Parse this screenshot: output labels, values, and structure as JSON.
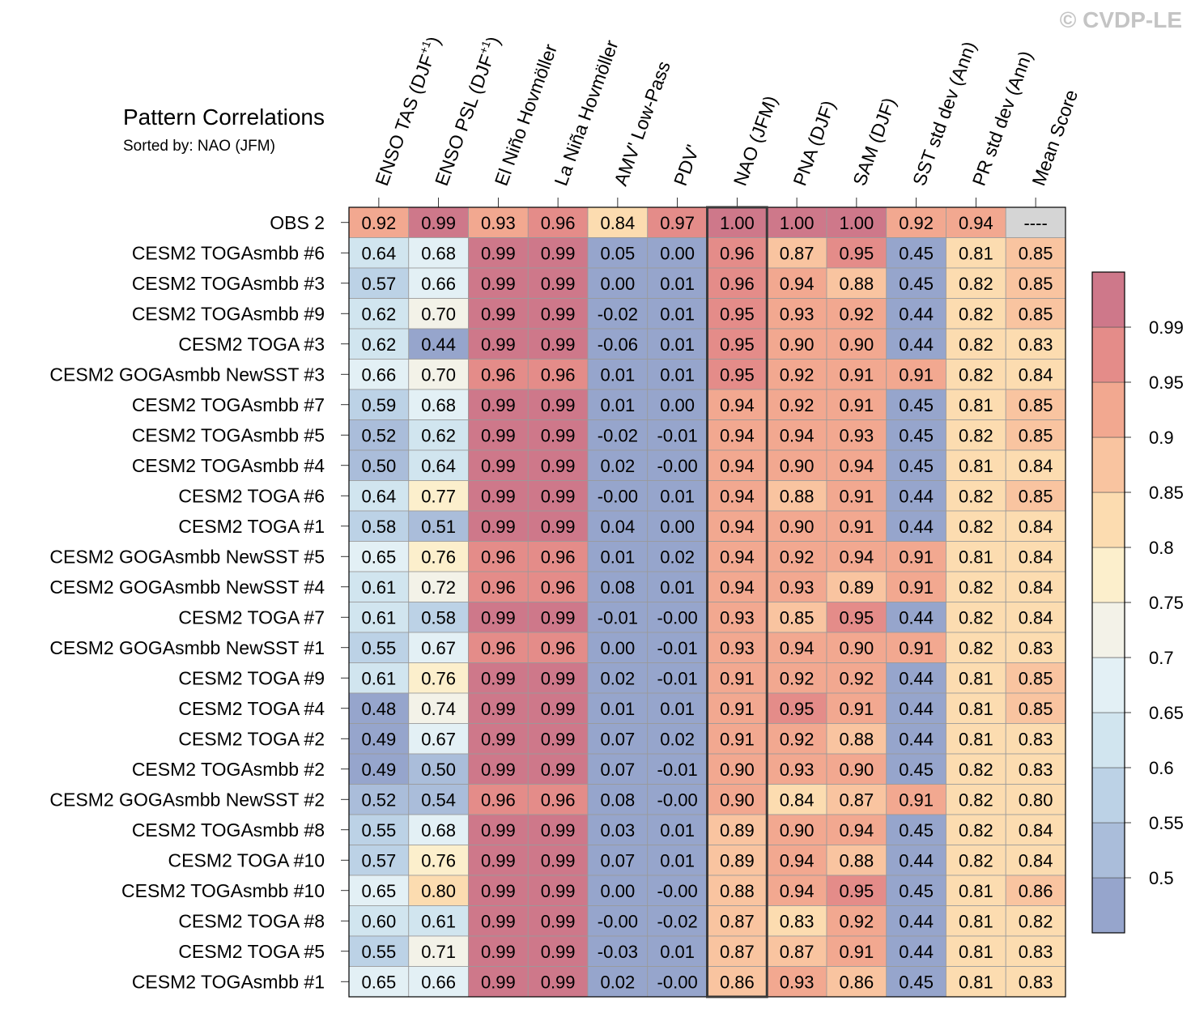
{
  "watermark": "© CVDP-LE",
  "chart_data": {
    "type": "heatmap",
    "title": "Pattern Correlations",
    "subtitle": "Sorted by: NAO (JFM)",
    "sorted_column": "NAO (JFM)",
    "columns": [
      "ENSO TAS (DJF+1)",
      "ENSO PSL (DJF+1)",
      "El Niño Hovmöller",
      "La Niña Hovmöller",
      "AMV' Low-Pass",
      "PDV'",
      "NAO (JFM)",
      "PNA (DJF)",
      "SAM (DJF)",
      "SST std dev (Ann)",
      "PR std dev (Ann)",
      "Mean Score"
    ],
    "rows": [
      {
        "name": "OBS 2",
        "values": [
          "0.92",
          "0.99",
          "0.93",
          "0.96",
          "0.84",
          "0.97",
          "1.00",
          "1.00",
          "1.00",
          "0.92",
          "0.94",
          "----"
        ]
      },
      {
        "name": "CESM2 TOGAsmbb #6",
        "values": [
          "0.64",
          "0.68",
          "0.99",
          "0.99",
          "0.05",
          "0.00",
          "0.96",
          "0.87",
          "0.95",
          "0.45",
          "0.81",
          "0.85"
        ]
      },
      {
        "name": "CESM2 TOGAsmbb #3",
        "values": [
          "0.57",
          "0.66",
          "0.99",
          "0.99",
          "0.00",
          "0.01",
          "0.96",
          "0.94",
          "0.88",
          "0.45",
          "0.82",
          "0.85"
        ]
      },
      {
        "name": "CESM2 TOGAsmbb #9",
        "values": [
          "0.62",
          "0.70",
          "0.99",
          "0.99",
          "-0.02",
          "0.01",
          "0.95",
          "0.93",
          "0.92",
          "0.44",
          "0.82",
          "0.85"
        ]
      },
      {
        "name": "CESM2 TOGA #3",
        "values": [
          "0.62",
          "0.44",
          "0.99",
          "0.99",
          "-0.06",
          "0.01",
          "0.95",
          "0.90",
          "0.90",
          "0.44",
          "0.82",
          "0.83"
        ]
      },
      {
        "name": "CESM2 GOGAsmbb NewSST #3",
        "values": [
          "0.66",
          "0.70",
          "0.96",
          "0.96",
          "0.01",
          "0.01",
          "0.95",
          "0.92",
          "0.91",
          "0.91",
          "0.82",
          "0.84"
        ]
      },
      {
        "name": "CESM2 TOGAsmbb #7",
        "values": [
          "0.59",
          "0.68",
          "0.99",
          "0.99",
          "0.01",
          "0.00",
          "0.94",
          "0.92",
          "0.91",
          "0.45",
          "0.81",
          "0.85"
        ]
      },
      {
        "name": "CESM2 TOGAsmbb #5",
        "values": [
          "0.52",
          "0.62",
          "0.99",
          "0.99",
          "-0.02",
          "-0.01",
          "0.94",
          "0.94",
          "0.93",
          "0.45",
          "0.82",
          "0.85"
        ]
      },
      {
        "name": "CESM2 TOGAsmbb #4",
        "values": [
          "0.50",
          "0.64",
          "0.99",
          "0.99",
          "0.02",
          "-0.00",
          "0.94",
          "0.90",
          "0.94",
          "0.45",
          "0.81",
          "0.84"
        ]
      },
      {
        "name": "CESM2 TOGA #6",
        "values": [
          "0.64",
          "0.77",
          "0.99",
          "0.99",
          "-0.00",
          "0.01",
          "0.94",
          "0.88",
          "0.91",
          "0.44",
          "0.82",
          "0.85"
        ]
      },
      {
        "name": "CESM2 TOGA #1",
        "values": [
          "0.58",
          "0.51",
          "0.99",
          "0.99",
          "0.04",
          "0.00",
          "0.94",
          "0.90",
          "0.91",
          "0.44",
          "0.82",
          "0.84"
        ]
      },
      {
        "name": "CESM2 GOGAsmbb NewSST #5",
        "values": [
          "0.65",
          "0.76",
          "0.96",
          "0.96",
          "0.01",
          "0.02",
          "0.94",
          "0.92",
          "0.94",
          "0.91",
          "0.81",
          "0.84"
        ]
      },
      {
        "name": "CESM2 GOGAsmbb NewSST #4",
        "values": [
          "0.61",
          "0.72",
          "0.96",
          "0.96",
          "0.08",
          "0.01",
          "0.94",
          "0.93",
          "0.89",
          "0.91",
          "0.82",
          "0.84"
        ]
      },
      {
        "name": "CESM2 TOGA #7",
        "values": [
          "0.61",
          "0.58",
          "0.99",
          "0.99",
          "-0.01",
          "-0.00",
          "0.93",
          "0.85",
          "0.95",
          "0.44",
          "0.82",
          "0.84"
        ]
      },
      {
        "name": "CESM2 GOGAsmbb NewSST #1",
        "values": [
          "0.55",
          "0.67",
          "0.96",
          "0.96",
          "0.00",
          "-0.01",
          "0.93",
          "0.94",
          "0.90",
          "0.91",
          "0.82",
          "0.83"
        ]
      },
      {
        "name": "CESM2 TOGA #9",
        "values": [
          "0.61",
          "0.76",
          "0.99",
          "0.99",
          "0.02",
          "-0.01",
          "0.91",
          "0.92",
          "0.92",
          "0.44",
          "0.81",
          "0.85"
        ]
      },
      {
        "name": "CESM2 TOGA #4",
        "values": [
          "0.48",
          "0.74",
          "0.99",
          "0.99",
          "0.01",
          "0.01",
          "0.91",
          "0.95",
          "0.91",
          "0.44",
          "0.81",
          "0.85"
        ]
      },
      {
        "name": "CESM2 TOGA #2",
        "values": [
          "0.49",
          "0.67",
          "0.99",
          "0.99",
          "0.07",
          "0.02",
          "0.91",
          "0.92",
          "0.88",
          "0.44",
          "0.81",
          "0.83"
        ]
      },
      {
        "name": "CESM2 TOGAsmbb #2",
        "values": [
          "0.49",
          "0.50",
          "0.99",
          "0.99",
          "0.07",
          "-0.01",
          "0.90",
          "0.93",
          "0.90",
          "0.45",
          "0.82",
          "0.83"
        ]
      },
      {
        "name": "CESM2 GOGAsmbb NewSST #2",
        "values": [
          "0.52",
          "0.54",
          "0.96",
          "0.96",
          "0.08",
          "-0.00",
          "0.90",
          "0.84",
          "0.87",
          "0.91",
          "0.82",
          "0.80"
        ]
      },
      {
        "name": "CESM2 TOGAsmbb #8",
        "values": [
          "0.55",
          "0.68",
          "0.99",
          "0.99",
          "0.03",
          "0.01",
          "0.89",
          "0.90",
          "0.94",
          "0.45",
          "0.82",
          "0.84"
        ]
      },
      {
        "name": "CESM2 TOGA #10",
        "values": [
          "0.57",
          "0.76",
          "0.99",
          "0.99",
          "0.07",
          "0.01",
          "0.89",
          "0.94",
          "0.88",
          "0.44",
          "0.82",
          "0.84"
        ]
      },
      {
        "name": "CESM2 TOGAsmbb #10",
        "values": [
          "0.65",
          "0.80",
          "0.99",
          "0.99",
          "0.00",
          "-0.00",
          "0.88",
          "0.94",
          "0.95",
          "0.45",
          "0.81",
          "0.86"
        ]
      },
      {
        "name": "CESM2 TOGA #8",
        "values": [
          "0.60",
          "0.61",
          "0.99",
          "0.99",
          "-0.00",
          "-0.02",
          "0.87",
          "0.83",
          "0.92",
          "0.44",
          "0.81",
          "0.82"
        ]
      },
      {
        "name": "CESM2 TOGA #5",
        "values": [
          "0.55",
          "0.71",
          "0.99",
          "0.99",
          "-0.03",
          "0.01",
          "0.87",
          "0.87",
          "0.91",
          "0.44",
          "0.81",
          "0.83"
        ]
      },
      {
        "name": "CESM2 TOGAsmbb #1",
        "values": [
          "0.65",
          "0.66",
          "0.99",
          "0.99",
          "0.02",
          "-0.00",
          "0.86",
          "0.93",
          "0.86",
          "0.45",
          "0.81",
          "0.83"
        ]
      }
    ],
    "colorbar": {
      "levels": [
        0.5,
        0.55,
        0.6,
        0.65,
        0.7,
        0.75,
        0.8,
        0.85,
        0.9,
        0.95,
        0.99
      ],
      "tick_labels": [
        "0.5",
        "0.55",
        "0.6",
        "0.65",
        "0.7",
        "0.75",
        "0.8",
        "0.85",
        "0.9",
        "0.95",
        "0.99"
      ],
      "colors": [
        "#96a5cc",
        "#aabdda",
        "#bcd2e6",
        "#d1e5ef",
        "#e3f0f5",
        "#f3f2e8",
        "#fcefcc",
        "#fcdcb0",
        "#f9c4a0",
        "#f2a890",
        "#e48c89",
        "#ce788a"
      ]
    },
    "missing_color": "#d5d5d5"
  }
}
